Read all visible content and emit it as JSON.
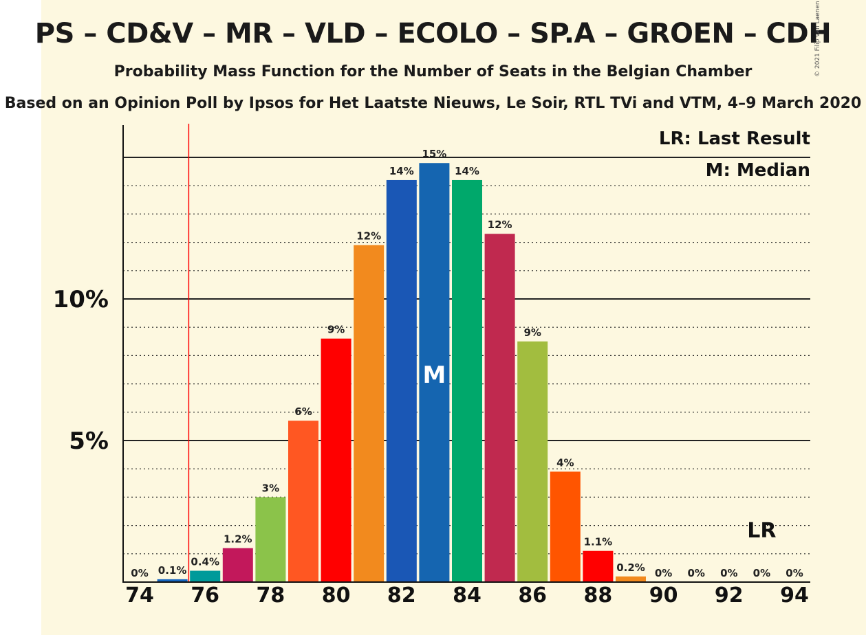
{
  "header": {
    "title": "PS – CD&V – MR – VLD – ECOLO – SP.A – GROEN – CDH",
    "subtitle": "Probability Mass Function for the Number of Seats in the Belgian Chamber",
    "source": "Based on an Opinion Poll by Ipsos for Het Laatste Nieuws, Le Soir, RTL TVi and VTM, 4–9 March 2020",
    "copyright": "© 2021 Filip van Laenen"
  },
  "legend": {
    "last_result": "LR: Last Result",
    "median": "M: Median"
  },
  "markers": {
    "median_label": "M",
    "last_result_label": "LR"
  },
  "colors": {
    "background": "#fdf8e0",
    "last_result_line": "#ff0000"
  },
  "chart_data": {
    "type": "bar",
    "title": "PS – CD&V – MR – VLD – ECOLO – SP.A – GROEN – CDH",
    "xlabel": "",
    "ylabel": "",
    "x": [
      74,
      75,
      76,
      77,
      78,
      79,
      80,
      81,
      82,
      83,
      84,
      85,
      86,
      87,
      88,
      89,
      90,
      91,
      92,
      93,
      94
    ],
    "values": [
      0.0,
      0.1,
      0.4,
      1.2,
      3.0,
      5.7,
      8.6,
      11.9,
      14.2,
      14.8,
      14.2,
      12.3,
      8.5,
      3.9,
      1.1,
      0.2,
      0.0,
      0.0,
      0.0,
      0.0,
      0.0
    ],
    "data_labels": [
      "0%",
      "0.1%",
      "0.4%",
      "1.2%",
      "3%",
      "6%",
      "9%",
      "12%",
      "14%",
      "15%",
      "14%",
      "12%",
      "9%",
      "4%",
      "1.1%",
      "0.2%",
      "0%",
      "0%",
      "0%",
      "0%",
      "0%"
    ],
    "bar_colors": [
      "#cf2e2e",
      "#1565c0",
      "#009a9a",
      "#c2185b",
      "#8bc34a",
      "#ff5722",
      "#ff0000",
      "#f28a1e",
      "#1a57b5",
      "#1565b0",
      "#00a86b",
      "#c0294f",
      "#a2bd3f",
      "#ff5500",
      "#ff0000",
      "#f28a1e",
      "#1a57b5",
      "#1565b0",
      "#00a86b",
      "#c0294f",
      "#a2bd3f"
    ],
    "x_ticks": [
      "74",
      "76",
      "78",
      "80",
      "82",
      "84",
      "86",
      "88",
      "90",
      "92",
      "94"
    ],
    "y_ticks": [
      {
        "value": 5,
        "label": "5%"
      },
      {
        "value": 10,
        "label": "10%"
      }
    ],
    "ylim": [
      0,
      16
    ],
    "median_seat": 83,
    "last_result_seat": 75.5,
    "lr_label_seat": 93,
    "grid": "dotted every 1%, solid at 5% and 10%",
    "legend_position": "top-right"
  }
}
